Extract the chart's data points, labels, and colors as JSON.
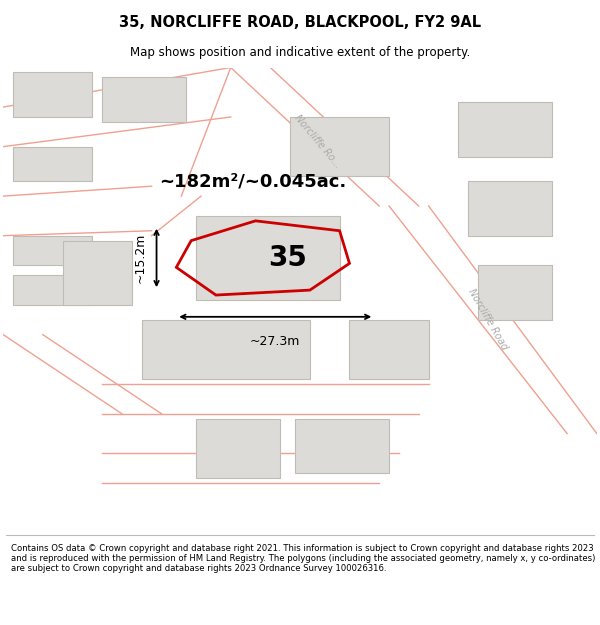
{
  "title": "35, NORCLIFFE ROAD, BLACKPOOL, FY2 9AL",
  "subtitle": "Map shows position and indicative extent of the property.",
  "footer": "Contains OS data © Crown copyright and database right 2021. This information is subject to Crown copyright and database rights 2023 and is reproduced with the permission of HM Land Registry. The polygons (including the associated geometry, namely x, y co-ordinates) are subject to Crown copyright and database rights 2023 Ordnance Survey 100026316.",
  "area_text": "~182m²/~0.045ac.",
  "label_35": "35",
  "dim_width": "~27.3m",
  "dim_height": "~15.2m",
  "map_bg": "#f8f8f8",
  "footer_bg": "#ffffff",
  "title_bg": "#ffffff",
  "property_edge": "#cc0000",
  "building_fill": "#dddbd7",
  "building_edge": "#c0bbb4",
  "road_color": "#f0a090",
  "road_label_color": "#aaaaaa",
  "dim_color": "#000000",
  "text_color": "#000000"
}
